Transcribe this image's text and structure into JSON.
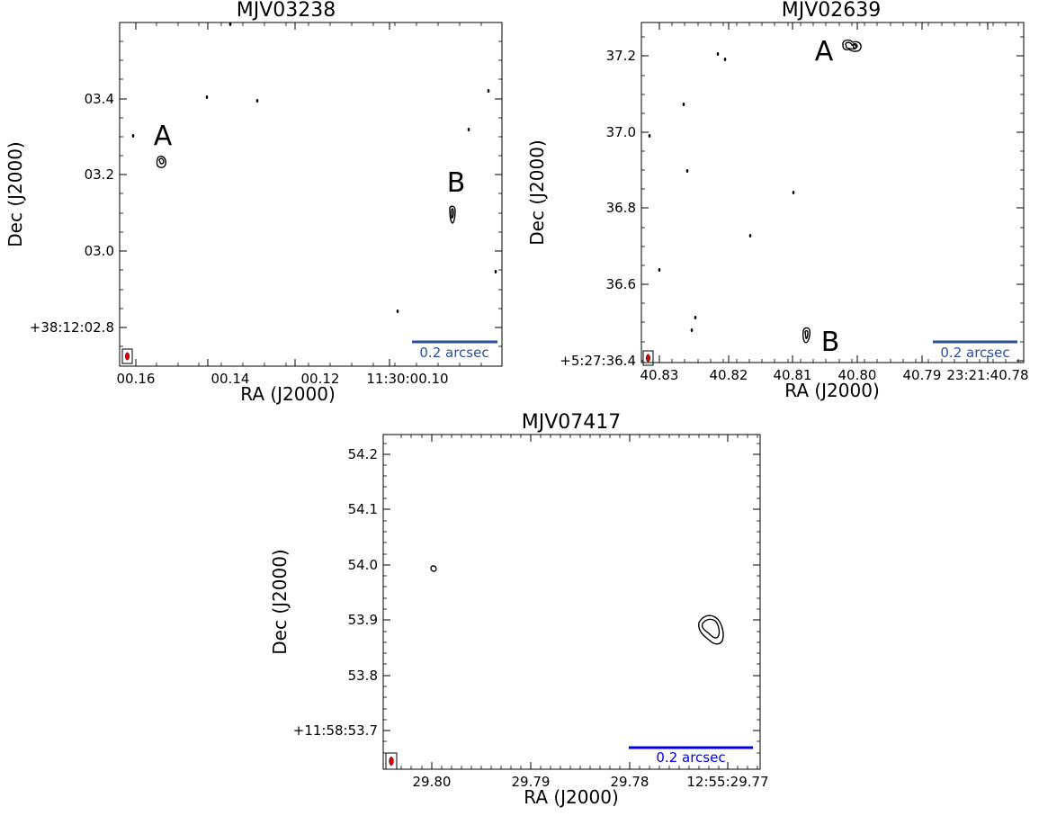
{
  "chart_data": [
    {
      "type": "contour",
      "title": "MJV03238",
      "xlabel": "RA (J2000)",
      "ylabel": "Dec (J2000)",
      "xticks": [
        "00.16",
        "00.14",
        "00.12",
        "11:30:00.10"
      ],
      "yticks": [
        "+38:12:02.8",
        "03.0",
        "03.2",
        "03.4"
      ],
      "annotations": [
        "A",
        "B"
      ],
      "scalebar": {
        "label": "0.2 arcsec",
        "color": "#2c4f9a"
      },
      "beam_color": "#e00000"
    },
    {
      "type": "contour",
      "title": "MJV02639",
      "xlabel": "RA (J2000)",
      "ylabel": "Dec (J2000)",
      "xticks": [
        "40.83",
        "40.82",
        "40.81",
        "40.80",
        "40.79",
        "23:21:40.78"
      ],
      "yticks": [
        "+5:27:36.4",
        "36.6",
        "36.8",
        "37.0",
        "37.2"
      ],
      "annotations": [
        "A",
        "B"
      ],
      "scalebar": {
        "label": "0.2 arcsec",
        "color": "#2c4f9a"
      },
      "beam_color": "#e00000"
    },
    {
      "type": "contour",
      "title": "MJV07417",
      "xlabel": "RA (J2000)",
      "ylabel": "Dec (J2000)",
      "xticks": [
        "29.80",
        "29.79",
        "29.78",
        "12:55:29.77"
      ],
      "yticks": [
        "+11:58:53.7",
        "53.8",
        "53.9",
        "54.0",
        "54.1",
        "54.2"
      ],
      "annotations": [],
      "scalebar": {
        "label": "0.2 arcsec",
        "color": "#0000e6"
      },
      "beam_color": "#e00000"
    }
  ]
}
